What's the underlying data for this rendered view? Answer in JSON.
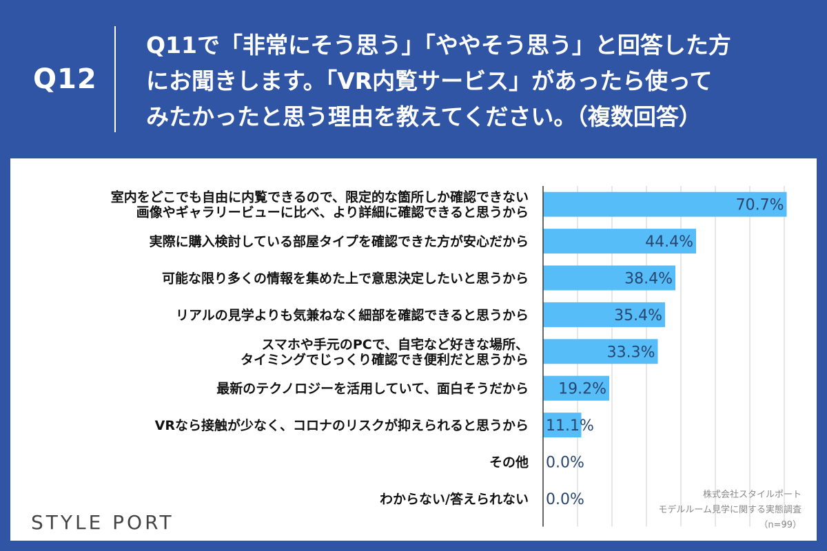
{
  "header": {
    "question_number": "Q12",
    "question_lines": [
      "Q11で「非常にそう思う」「ややそう思う」と回答した方",
      "にお聞きします。「VR内覧サービス」があったら使って",
      "みたかったと思う理由を教えてください。（複数回答）"
    ]
  },
  "chart_data": {
    "type": "bar",
    "orientation": "horizontal",
    "categories": [
      [
        "室内をどこでも自由に内覧できるので、限定的な箇所しか確認できない",
        "画像やギャラリービューに比べ、より詳細に確認できると思うから"
      ],
      [
        "実際に購入検討している部屋タイプを確認できた方が安心だから"
      ],
      [
        "可能な限り多くの情報を集めた上で意思決定したいと思うから"
      ],
      [
        "リアルの見学よりも気兼ねなく細部を確認できると思うから"
      ],
      [
        "スマホや手元のPCで、自宅など好きな場所、",
        "タイミングでじっくり確認でき便利だと思うから"
      ],
      [
        "最新のテクノロジーを活用していて、面白そうだから"
      ],
      [
        "VRなら接触が少なく、コロナのリスクが抑えられると思うから"
      ],
      [
        "その他"
      ],
      [
        "わからない/答えられない"
      ]
    ],
    "values": [
      70.7,
      44.4,
      38.4,
      35.4,
      33.3,
      19.2,
      11.1,
      0.0,
      0.0
    ],
    "value_labels": [
      "70.7%",
      "44.4%",
      "38.4%",
      "35.4%",
      "33.3%",
      "19.2%",
      "11.1%",
      "0.0%",
      "0.0%"
    ],
    "xlim": [
      0,
      80
    ],
    "grid": true,
    "bar_color": "#57bdf9"
  },
  "footer": {
    "logo": "STYLE PORT",
    "source_lines": [
      "株式会社スタイルポート",
      "モデルルーム見学に関する実態調査",
      "（n=99）"
    ]
  }
}
